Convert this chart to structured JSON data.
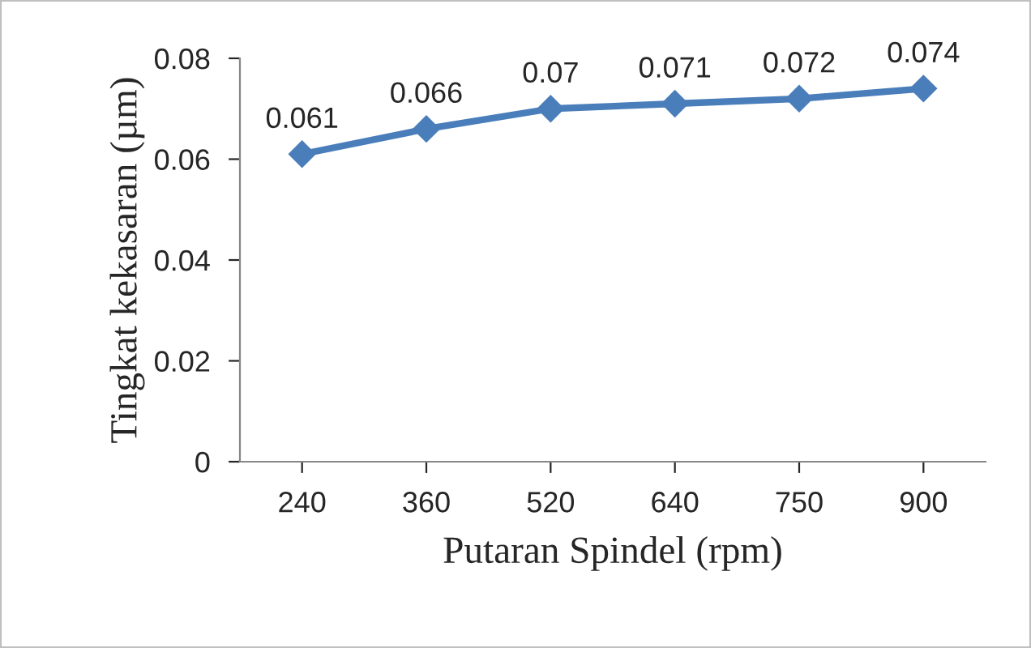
{
  "chart_data": {
    "type": "line",
    "xlabel": "Putaran Spindel (rpm)",
    "ylabel": "Tingkat kekasaran (µm)",
    "categories": [
      "240",
      "360",
      "520",
      "640",
      "750",
      "900"
    ],
    "series": [
      {
        "color": "#4a7ebb",
        "values": [
          0.061,
          0.066,
          0.07,
          0.071,
          0.072,
          0.074
        ]
      }
    ],
    "ylim": [
      0,
      0.08
    ],
    "yticks": [
      {
        "value": 0,
        "label": "0"
      },
      0.02,
      0.04,
      0.06,
      0.08
    ],
    "marker": "diamond",
    "line_style": "solid",
    "grid": false,
    "legend": false,
    "data_labels": true
  }
}
